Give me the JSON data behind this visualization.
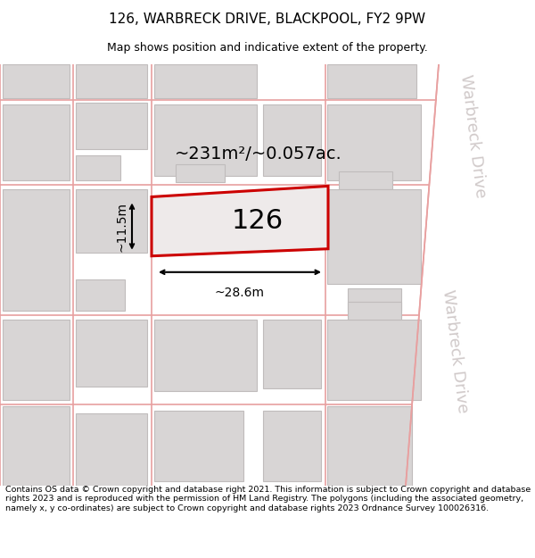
{
  "title": "126, WARBRECK DRIVE, BLACKPOOL, FY2 9PW",
  "subtitle": "Map shows position and indicative extent of the property.",
  "footer": "Contains OS data © Crown copyright and database right 2021. This information is subject to Crown copyright and database rights 2023 and is reproduced with the permission of HM Land Registry. The polygons (including the associated geometry, namely x, y co-ordinates) are subject to Crown copyright and database rights 2023 Ordnance Survey 100026316.",
  "area_label": "~231m²/~0.057ac.",
  "width_label": "~28.6m",
  "height_label": "~11.5m",
  "number_label": "126",
  "map_bg": "#f5f3f3",
  "road_line_color": "#e8a0a0",
  "building_fill": "#d8d5d5",
  "building_edge": "#c0bcbc",
  "highlight_fill": "#eeeaea",
  "highlight_edge": "#cc0000",
  "street_label_color": "#c8c0c0",
  "title_fontsize": 11,
  "subtitle_fontsize": 9,
  "footer_fontsize": 6.8,
  "warbreck_label_fontsize": 13
}
